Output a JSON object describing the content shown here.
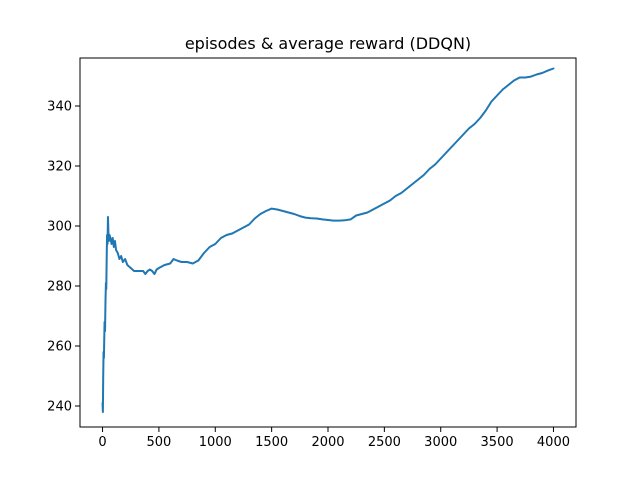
{
  "chart_data": {
    "type": "line",
    "title": "episodes & average reward (DDQN)",
    "xlabel": "",
    "ylabel": "",
    "xlim": [
      -200,
      4200
    ],
    "ylim": [
      233,
      356
    ],
    "xticks": [
      0,
      500,
      1000,
      1500,
      2000,
      2500,
      3000,
      3500,
      4000
    ],
    "yticks": [
      240,
      260,
      280,
      300,
      320,
      340
    ],
    "grid": false,
    "legend": "none",
    "series": [
      {
        "color": "#1f77b4",
        "points": [
          [
            0,
            241
          ],
          [
            3,
            238
          ],
          [
            6,
            250
          ],
          [
            9,
            258
          ],
          [
            12,
            256
          ],
          [
            15,
            262
          ],
          [
            18,
            268
          ],
          [
            22,
            265
          ],
          [
            26,
            275
          ],
          [
            30,
            281
          ],
          [
            33,
            279
          ],
          [
            37,
            290
          ],
          [
            40,
            297
          ],
          [
            44,
            294
          ],
          [
            48,
            303
          ],
          [
            52,
            298
          ],
          [
            56,
            295
          ],
          [
            62,
            297
          ],
          [
            70,
            296
          ],
          [
            80,
            294
          ],
          [
            90,
            296
          ],
          [
            100,
            293
          ],
          [
            110,
            295
          ],
          [
            120,
            292
          ],
          [
            135,
            291
          ],
          [
            150,
            289
          ],
          [
            165,
            290
          ],
          [
            180,
            288
          ],
          [
            200,
            289
          ],
          [
            220,
            287
          ],
          [
            250,
            286
          ],
          [
            280,
            285
          ],
          [
            320,
            285
          ],
          [
            360,
            285
          ],
          [
            380,
            284
          ],
          [
            400,
            285
          ],
          [
            420,
            285.5
          ],
          [
            440,
            285
          ],
          [
            460,
            284
          ],
          [
            480,
            285.5
          ],
          [
            500,
            286
          ],
          [
            550,
            287
          ],
          [
            600,
            287.5
          ],
          [
            630,
            289
          ],
          [
            660,
            288.5
          ],
          [
            700,
            288
          ],
          [
            750,
            288
          ],
          [
            800,
            287.5
          ],
          [
            850,
            288.5
          ],
          [
            900,
            291
          ],
          [
            950,
            293
          ],
          [
            1000,
            294
          ],
          [
            1050,
            296
          ],
          [
            1100,
            297
          ],
          [
            1150,
            297.5
          ],
          [
            1200,
            298.5
          ],
          [
            1250,
            299.5
          ],
          [
            1300,
            300.5
          ],
          [
            1350,
            302.5
          ],
          [
            1400,
            304
          ],
          [
            1450,
            305
          ],
          [
            1500,
            305.8
          ],
          [
            1550,
            305.5
          ],
          [
            1600,
            305
          ],
          [
            1650,
            304.5
          ],
          [
            1700,
            304
          ],
          [
            1750,
            303.3
          ],
          [
            1800,
            302.8
          ],
          [
            1850,
            302.6
          ],
          [
            1900,
            302.5
          ],
          [
            1950,
            302.2
          ],
          [
            2000,
            302
          ],
          [
            2050,
            301.8
          ],
          [
            2100,
            301.8
          ],
          [
            2150,
            301.9
          ],
          [
            2200,
            302.2
          ],
          [
            2250,
            303.5
          ],
          [
            2300,
            304
          ],
          [
            2350,
            304.5
          ],
          [
            2400,
            305.5
          ],
          [
            2450,
            306.5
          ],
          [
            2500,
            307.5
          ],
          [
            2550,
            308.5
          ],
          [
            2600,
            310
          ],
          [
            2650,
            311
          ],
          [
            2700,
            312.5
          ],
          [
            2750,
            314
          ],
          [
            2800,
            315.5
          ],
          [
            2850,
            317
          ],
          [
            2900,
            319
          ],
          [
            2950,
            320.5
          ],
          [
            3000,
            322.5
          ],
          [
            3050,
            324.5
          ],
          [
            3100,
            326.5
          ],
          [
            3150,
            328.5
          ],
          [
            3200,
            330.5
          ],
          [
            3250,
            332.5
          ],
          [
            3300,
            334
          ],
          [
            3350,
            336
          ],
          [
            3400,
            338.5
          ],
          [
            3450,
            341.5
          ],
          [
            3500,
            343.5
          ],
          [
            3550,
            345.5
          ],
          [
            3600,
            347
          ],
          [
            3650,
            348.5
          ],
          [
            3700,
            349.5
          ],
          [
            3750,
            349.5
          ],
          [
            3800,
            349.8
          ],
          [
            3850,
            350.5
          ],
          [
            3900,
            351
          ],
          [
            3950,
            351.8
          ],
          [
            4000,
            352.5
          ]
        ]
      }
    ]
  }
}
